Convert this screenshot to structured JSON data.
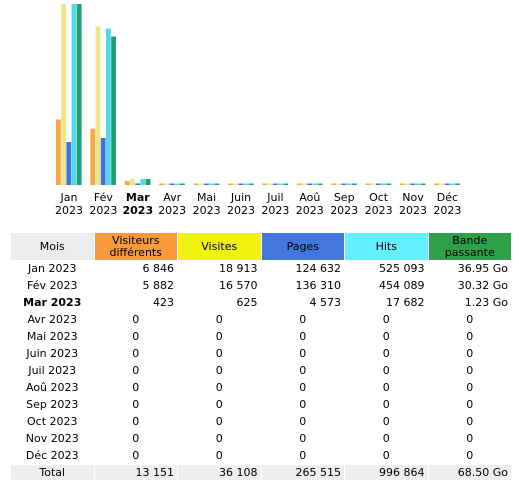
{
  "chart_data": {
    "type": "bar",
    "categories": [
      "Jan 2023",
      "Fév 2023",
      "Mar 2023",
      "Avr 2023",
      "Mai 2023",
      "Juin 2023",
      "Juil 2023",
      "Aoû 2023",
      "Sep 2023",
      "Oct 2023",
      "Nov 2023",
      "Déc 2023"
    ],
    "category_lines": [
      [
        "Jan",
        "2023"
      ],
      [
        "Fév",
        "2023"
      ],
      [
        "Mar",
        "2023"
      ],
      [
        "Avr",
        "2023"
      ],
      [
        "Mai",
        "2023"
      ],
      [
        "Juin",
        "2023"
      ],
      [
        "Juil",
        "2023"
      ],
      [
        "Aoû",
        "2023"
      ],
      [
        "Sep",
        "2023"
      ],
      [
        "Oct",
        "2023"
      ],
      [
        "Nov",
        "2023"
      ],
      [
        "Déc",
        "2023"
      ]
    ],
    "current_index": 2,
    "series": [
      {
        "name": "Visiteurs différents",
        "values": [
          6846,
          5882,
          423,
          0,
          0,
          0,
          0,
          0,
          0,
          0,
          0,
          0
        ]
      },
      {
        "name": "Visites",
        "values": [
          18913,
          16570,
          625,
          0,
          0,
          0,
          0,
          0,
          0,
          0,
          0,
          0
        ]
      },
      {
        "name": "Pages",
        "values": [
          124632,
          136310,
          4573,
          0,
          0,
          0,
          0,
          0,
          0,
          0,
          0,
          0
        ]
      },
      {
        "name": "Hits",
        "values": [
          525093,
          454089,
          17682,
          0,
          0,
          0,
          0,
          0,
          0,
          0,
          0,
          0
        ]
      },
      {
        "name": "Bande passante",
        "values": [
          36.95,
          30.32,
          1.23,
          0,
          0,
          0,
          0,
          0,
          0,
          0,
          0,
          0
        ]
      }
    ],
    "colors": [
      "#f5a843",
      "#ede58a",
      "#4470dd",
      "#50d8ee",
      "#20a070"
    ]
  },
  "table": {
    "headers": {
      "mois": "Mois",
      "visiteurs": [
        "Visiteurs",
        "différents"
      ],
      "visites": "Visites",
      "pages": "Pages",
      "hits": "Hits",
      "bande": [
        "Bande",
        "passante"
      ]
    },
    "header_colors": {
      "mois": "#ececec",
      "visiteurs": "#f79a3e",
      "visites": "#f2f20f",
      "pages": "#4477dd",
      "hits": "#66f0ff",
      "bande": "#2ea04a"
    },
    "rows": [
      {
        "mois": "Jan 2023",
        "visiteurs": "6 846",
        "visites": "18 913",
        "pages": "124 632",
        "hits": "525 093",
        "bande": "36.95 Go"
      },
      {
        "mois": "Fév 2023",
        "visiteurs": "5 882",
        "visites": "16 570",
        "pages": "136 310",
        "hits": "454 089",
        "bande": "30.32 Go"
      },
      {
        "mois": "Mar 2023",
        "visiteurs": "423",
        "visites": "625",
        "pages": "4 573",
        "hits": "17 682",
        "bande": "1.23 Go"
      },
      {
        "mois": "Avr 2023",
        "visiteurs": "0",
        "visites": "0",
        "pages": "0",
        "hits": "0",
        "bande": "0"
      },
      {
        "mois": "Mai 2023",
        "visiteurs": "0",
        "visites": "0",
        "pages": "0",
        "hits": "0",
        "bande": "0"
      },
      {
        "mois": "Juin 2023",
        "visiteurs": "0",
        "visites": "0",
        "pages": "0",
        "hits": "0",
        "bande": "0"
      },
      {
        "mois": "Juil 2023",
        "visiteurs": "0",
        "visites": "0",
        "pages": "0",
        "hits": "0",
        "bande": "0"
      },
      {
        "mois": "Aoû 2023",
        "visiteurs": "0",
        "visites": "0",
        "pages": "0",
        "hits": "0",
        "bande": "0"
      },
      {
        "mois": "Sep 2023",
        "visiteurs": "0",
        "visites": "0",
        "pages": "0",
        "hits": "0",
        "bande": "0"
      },
      {
        "mois": "Oct 2023",
        "visiteurs": "0",
        "visites": "0",
        "pages": "0",
        "hits": "0",
        "bande": "0"
      },
      {
        "mois": "Nov 2023",
        "visiteurs": "0",
        "visites": "0",
        "pages": "0",
        "hits": "0",
        "bande": "0"
      },
      {
        "mois": "Déc 2023",
        "visiteurs": "0",
        "visites": "0",
        "pages": "0",
        "hits": "0",
        "bande": "0"
      }
    ],
    "total": {
      "label": "Total",
      "visiteurs": "13 151",
      "visites": "36 108",
      "pages": "265 515",
      "hits": "996 864",
      "bande": "68.50 Go"
    }
  }
}
